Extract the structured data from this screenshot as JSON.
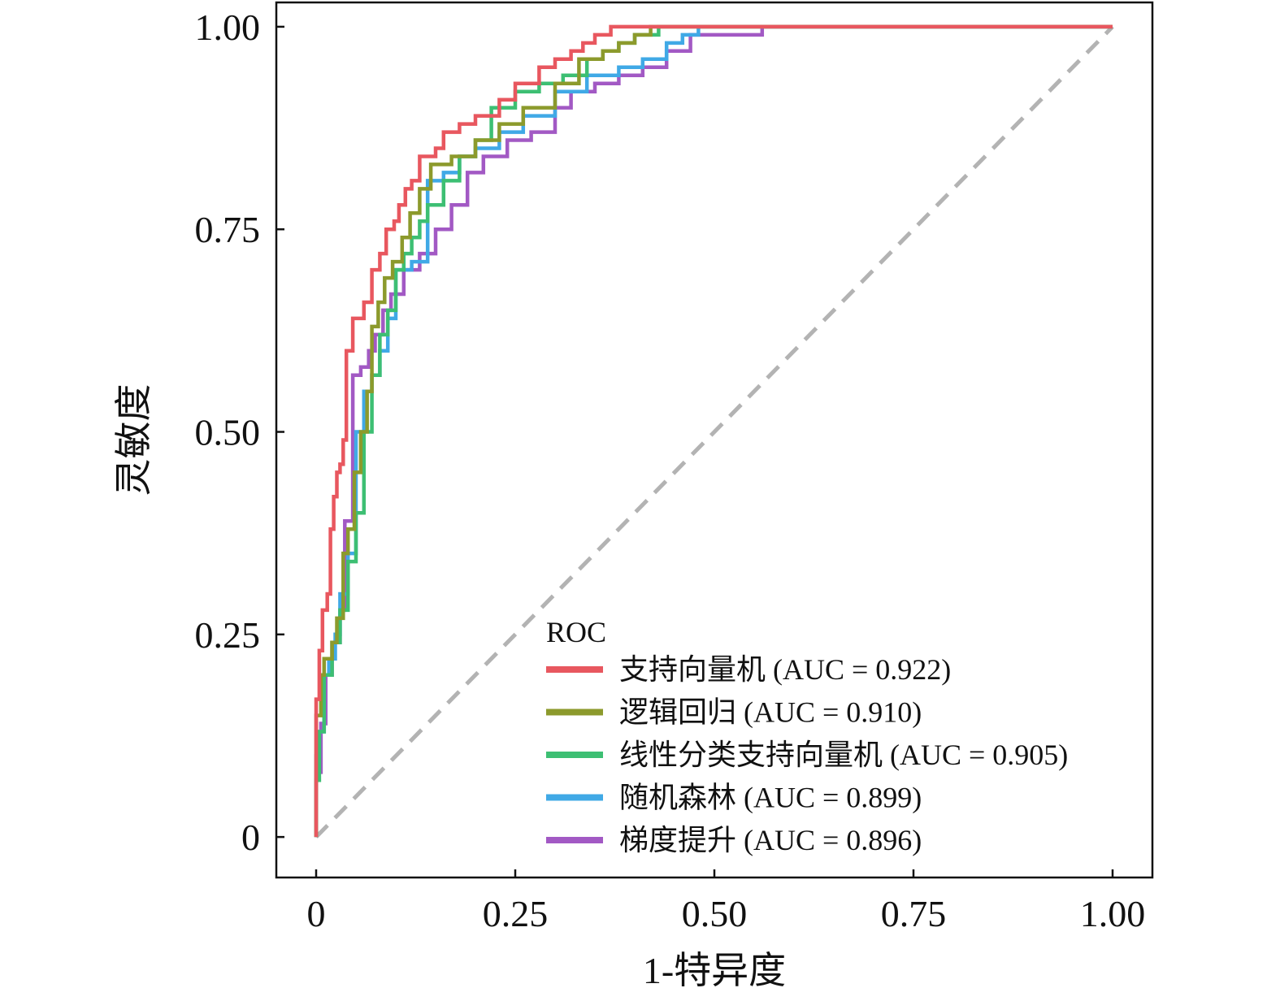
{
  "chart_data": {
    "type": "line",
    "title": "",
    "xlabel": "1-特异度",
    "ylabel": "灵敏度",
    "xlim": [
      -0.05,
      1.05
    ],
    "ylim": [
      -0.05,
      1.03
    ],
    "xticks": [
      0,
      0.25,
      0.5,
      0.75,
      1.0
    ],
    "xtick_labels": [
      "0",
      "0.25",
      "0.50",
      "0.75",
      "1.00"
    ],
    "yticks": [
      0,
      0.25,
      0.5,
      0.75,
      1.0
    ],
    "ytick_labels": [
      "0",
      "0.25",
      "0.50",
      "0.75",
      "1.00"
    ],
    "grid": false,
    "legend": {
      "title": "ROC",
      "location": "lower-right"
    },
    "reference_line": {
      "x": [
        0,
        1
      ],
      "y": [
        0,
        1
      ],
      "color": "#b3b3b3",
      "style": "dashed"
    },
    "series": [
      {
        "name": "支持向量机 (AUC = 0.922)",
        "color": "#e8575f",
        "x": [
          0,
          0,
          0.004,
          0.004,
          0.008,
          0.008,
          0.014,
          0.014,
          0.018,
          0.018,
          0.022,
          0.022,
          0.026,
          0.026,
          0.03,
          0.03,
          0.034,
          0.034,
          0.038,
          0.038,
          0.046,
          0.046,
          0.06,
          0.06,
          0.07,
          0.07,
          0.08,
          0.08,
          0.088,
          0.088,
          0.098,
          0.098,
          0.104,
          0.104,
          0.112,
          0.112,
          0.12,
          0.12,
          0.13,
          0.13,
          0.15,
          0.15,
          0.16,
          0.16,
          0.17,
          0.17,
          0.18,
          0.18,
          0.2,
          0.2,
          0.23,
          0.23,
          0.25,
          0.25,
          0.28,
          0.28,
          0.3,
          0.3,
          0.32,
          0.32,
          0.335,
          0.335,
          0.35,
          0.35,
          0.37,
          0.37,
          0.39,
          0.39,
          1.0
        ],
        "y": [
          0,
          0.17,
          0.17,
          0.23,
          0.23,
          0.28,
          0.28,
          0.3,
          0.3,
          0.38,
          0.38,
          0.42,
          0.42,
          0.45,
          0.45,
          0.46,
          0.46,
          0.49,
          0.49,
          0.6,
          0.6,
          0.64,
          0.64,
          0.66,
          0.66,
          0.7,
          0.7,
          0.72,
          0.72,
          0.75,
          0.75,
          0.76,
          0.76,
          0.78,
          0.78,
          0.8,
          0.8,
          0.81,
          0.81,
          0.84,
          0.84,
          0.85,
          0.85,
          0.87,
          0.87,
          0.87,
          0.87,
          0.88,
          0.88,
          0.89,
          0.89,
          0.91,
          0.91,
          0.93,
          0.93,
          0.95,
          0.95,
          0.96,
          0.96,
          0.97,
          0.97,
          0.98,
          0.98,
          0.99,
          0.99,
          1.0,
          1.0,
          1.0,
          1.0
        ]
      },
      {
        "name": "逻辑回归 (AUC = 0.910)",
        "color": "#8c9a2c",
        "x": [
          0,
          0,
          0.006,
          0.006,
          0.01,
          0.01,
          0.02,
          0.02,
          0.026,
          0.026,
          0.034,
          0.034,
          0.04,
          0.04,
          0.048,
          0.048,
          0.056,
          0.056,
          0.064,
          0.064,
          0.07,
          0.07,
          0.078,
          0.078,
          0.086,
          0.086,
          0.096,
          0.096,
          0.108,
          0.108,
          0.118,
          0.118,
          0.13,
          0.13,
          0.144,
          0.144,
          0.17,
          0.17,
          0.2,
          0.2,
          0.23,
          0.23,
          0.26,
          0.26,
          0.3,
          0.3,
          0.33,
          0.33,
          0.36,
          0.36,
          0.38,
          0.38,
          0.4,
          0.4,
          0.42,
          0.42,
          1.0
        ],
        "y": [
          0,
          0.15,
          0.15,
          0.2,
          0.2,
          0.22,
          0.22,
          0.24,
          0.24,
          0.27,
          0.27,
          0.35,
          0.35,
          0.38,
          0.38,
          0.45,
          0.45,
          0.5,
          0.5,
          0.55,
          0.55,
          0.63,
          0.63,
          0.66,
          0.66,
          0.69,
          0.69,
          0.71,
          0.71,
          0.74,
          0.74,
          0.77,
          0.77,
          0.8,
          0.8,
          0.83,
          0.83,
          0.84,
          0.84,
          0.86,
          0.86,
          0.88,
          0.88,
          0.9,
          0.9,
          0.93,
          0.93,
          0.96,
          0.96,
          0.97,
          0.97,
          0.98,
          0.98,
          0.99,
          0.99,
          1.0,
          1.0
        ]
      },
      {
        "name": "线性分类支持向量机 (AUC = 0.905)",
        "color": "#3dbf73",
        "x": [
          0,
          0,
          0.004,
          0.004,
          0.01,
          0.01,
          0.02,
          0.02,
          0.03,
          0.03,
          0.04,
          0.04,
          0.05,
          0.05,
          0.06,
          0.06,
          0.07,
          0.07,
          0.08,
          0.08,
          0.09,
          0.09,
          0.1,
          0.1,
          0.11,
          0.11,
          0.12,
          0.12,
          0.13,
          0.13,
          0.14,
          0.14,
          0.16,
          0.16,
          0.18,
          0.18,
          0.2,
          0.2,
          0.22,
          0.22,
          0.25,
          0.25,
          0.28,
          0.28,
          0.31,
          0.31,
          0.34,
          0.34,
          0.36,
          0.36,
          0.38,
          0.38,
          0.4,
          0.4,
          0.43,
          0.43,
          1.0
        ],
        "y": [
          0,
          0.07,
          0.07,
          0.13,
          0.13,
          0.2,
          0.2,
          0.24,
          0.24,
          0.28,
          0.28,
          0.34,
          0.34,
          0.4,
          0.4,
          0.5,
          0.5,
          0.57,
          0.57,
          0.62,
          0.62,
          0.65,
          0.65,
          0.7,
          0.7,
          0.72,
          0.72,
          0.74,
          0.74,
          0.76,
          0.76,
          0.78,
          0.78,
          0.81,
          0.81,
          0.84,
          0.84,
          0.86,
          0.86,
          0.9,
          0.9,
          0.92,
          0.92,
          0.93,
          0.93,
          0.94,
          0.94,
          0.96,
          0.96,
          0.97,
          0.97,
          0.98,
          0.98,
          0.99,
          0.99,
          1.0,
          1.0
        ]
      },
      {
        "name": "随机森林 (AUC = 0.899)",
        "color": "#40a9e6",
        "x": [
          0,
          0,
          0.004,
          0.004,
          0.01,
          0.01,
          0.016,
          0.016,
          0.024,
          0.024,
          0.03,
          0.03,
          0.04,
          0.04,
          0.05,
          0.05,
          0.06,
          0.06,
          0.07,
          0.07,
          0.08,
          0.08,
          0.09,
          0.09,
          0.1,
          0.1,
          0.12,
          0.12,
          0.14,
          0.14,
          0.16,
          0.16,
          0.18,
          0.18,
          0.2,
          0.2,
          0.23,
          0.23,
          0.26,
          0.26,
          0.3,
          0.3,
          0.34,
          0.34,
          0.38,
          0.38,
          0.41,
          0.41,
          0.44,
          0.44,
          0.46,
          0.46,
          0.48,
          0.48,
          1.0
        ],
        "y": [
          0,
          0.1,
          0.1,
          0.13,
          0.13,
          0.2,
          0.2,
          0.22,
          0.22,
          0.25,
          0.25,
          0.3,
          0.3,
          0.35,
          0.35,
          0.5,
          0.5,
          0.55,
          0.55,
          0.57,
          0.57,
          0.6,
          0.6,
          0.64,
          0.64,
          0.7,
          0.7,
          0.71,
          0.71,
          0.81,
          0.81,
          0.82,
          0.82,
          0.84,
          0.84,
          0.85,
          0.85,
          0.87,
          0.87,
          0.89,
          0.89,
          0.92,
          0.92,
          0.94,
          0.94,
          0.95,
          0.95,
          0.96,
          0.96,
          0.98,
          0.98,
          0.99,
          0.99,
          1.0,
          1.0
        ]
      },
      {
        "name": "梯度提升 (AUC = 0.896)",
        "color": "#a259c4",
        "x": [
          0,
          0,
          0.006,
          0.006,
          0.012,
          0.012,
          0.02,
          0.02,
          0.03,
          0.03,
          0.036,
          0.036,
          0.046,
          0.046,
          0.056,
          0.056,
          0.066,
          0.066,
          0.074,
          0.074,
          0.084,
          0.084,
          0.094,
          0.094,
          0.11,
          0.11,
          0.13,
          0.13,
          0.15,
          0.15,
          0.17,
          0.17,
          0.19,
          0.19,
          0.21,
          0.21,
          0.24,
          0.24,
          0.27,
          0.27,
          0.3,
          0.3,
          0.32,
          0.32,
          0.35,
          0.35,
          0.38,
          0.38,
          0.41,
          0.41,
          0.44,
          0.44,
          0.47,
          0.47,
          0.5,
          0.5,
          0.56,
          0.56,
          1.0
        ],
        "y": [
          0,
          0.08,
          0.08,
          0.14,
          0.14,
          0.2,
          0.2,
          0.24,
          0.24,
          0.28,
          0.28,
          0.39,
          0.39,
          0.57,
          0.57,
          0.58,
          0.58,
          0.6,
          0.6,
          0.62,
          0.62,
          0.65,
          0.65,
          0.67,
          0.67,
          0.7,
          0.7,
          0.72,
          0.72,
          0.75,
          0.75,
          0.78,
          0.78,
          0.82,
          0.82,
          0.84,
          0.84,
          0.86,
          0.86,
          0.87,
          0.87,
          0.9,
          0.9,
          0.92,
          0.92,
          0.93,
          0.93,
          0.94,
          0.94,
          0.95,
          0.95,
          0.97,
          0.97,
          0.99,
          0.99,
          0.99,
          0.99,
          1.0,
          1.0
        ]
      }
    ]
  }
}
